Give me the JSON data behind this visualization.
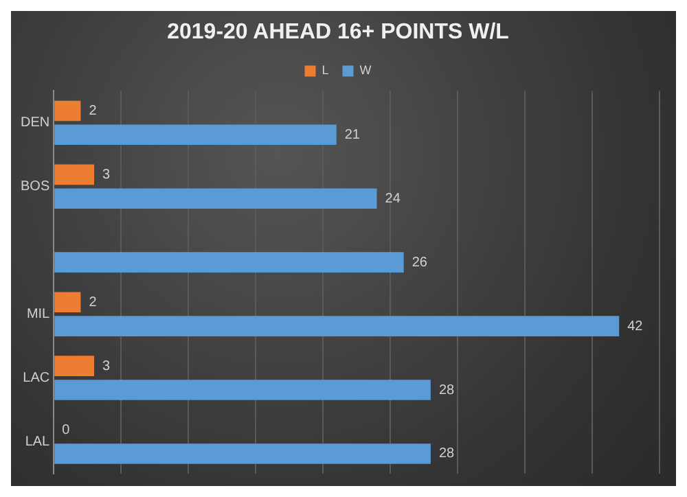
{
  "chart_data": {
    "type": "bar",
    "orientation": "horizontal",
    "title": "2019-20 AHEAD 16+ POINTS W/L",
    "categories": [
      "DEN",
      "BOS",
      null,
      "MIL",
      "LAC",
      "LAL"
    ],
    "series": [
      {
        "name": "L",
        "color": "#ed7d31",
        "values": [
          2,
          3,
          null,
          2,
          3,
          0
        ]
      },
      {
        "name": "W",
        "color": "#5b9bd5",
        "values": [
          21,
          24,
          26,
          42,
          28,
          28
        ]
      }
    ],
    "xlim": [
      0,
      45
    ],
    "xticks": [
      {
        "value": 0,
        "label": null
      },
      {
        "value": 5,
        "label": null
      },
      {
        "value": 10,
        "label": null
      },
      {
        "value": 15,
        "label": null
      },
      {
        "value": 20,
        "label": null
      },
      {
        "value": 25,
        "label": null
      },
      {
        "value": 30,
        "label": null
      },
      {
        "value": 35,
        "label": null
      },
      {
        "value": 40,
        "label": null
      },
      {
        "value": 45,
        "label": null
      }
    ],
    "grid": "x",
    "legend": "top",
    "tick_labels": "y",
    "data_labels": true
  }
}
